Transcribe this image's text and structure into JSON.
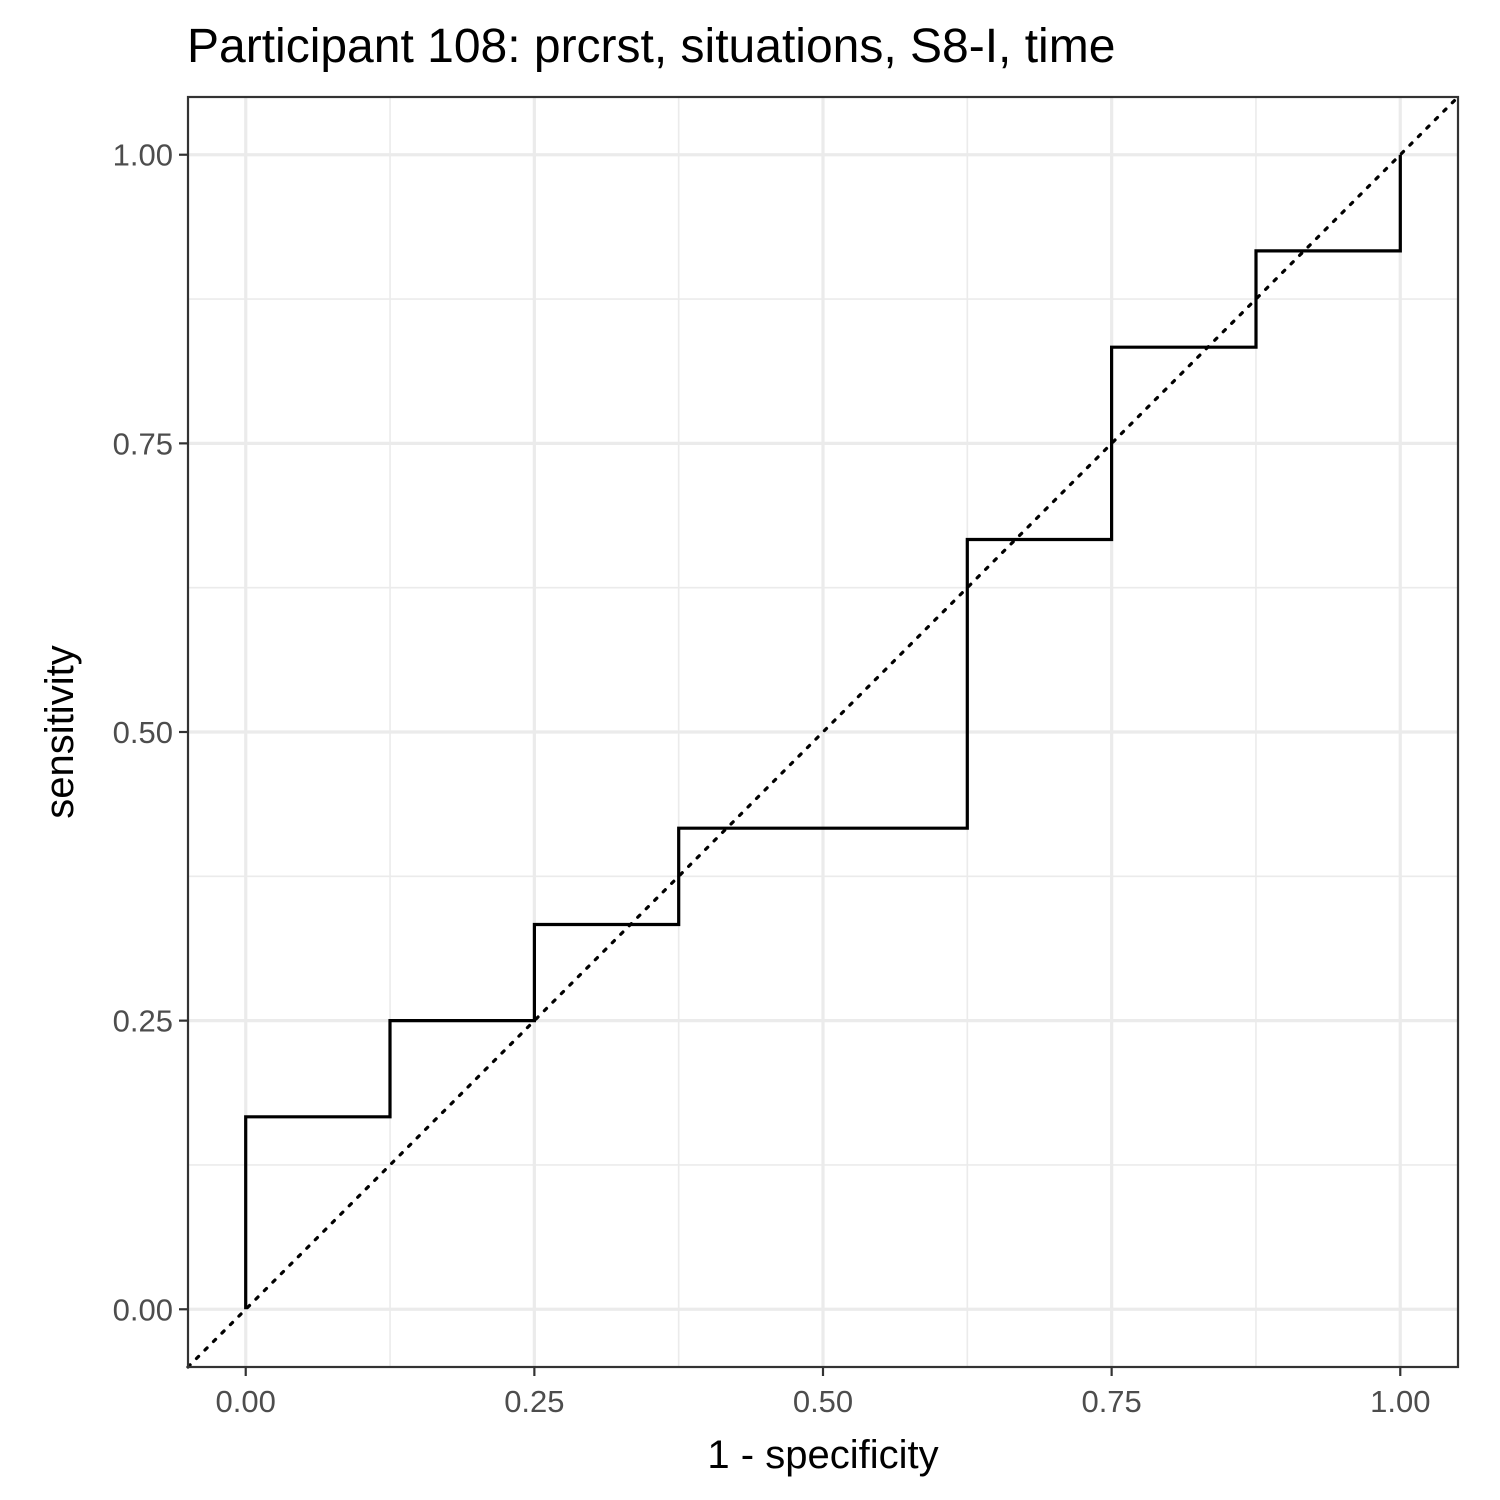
{
  "chart_data": {
    "type": "line",
    "title": "Participant 108: prcrst, situations, S8-I, time",
    "xlabel": "1 - specificity",
    "ylabel": "sensitivity",
    "xlim": [
      -0.05,
      1.05
    ],
    "ylim": [
      -0.05,
      1.05
    ],
    "x_ticks": [
      0,
      0.25,
      0.5,
      0.75,
      1
    ],
    "x_tick_labels": [
      "0.00",
      "0.25",
      "0.50",
      "0.75",
      "1.00"
    ],
    "y_ticks": [
      0,
      0.25,
      0.5,
      0.75,
      1
    ],
    "y_tick_labels": [
      "0.00",
      "0.25",
      "0.50",
      "0.75",
      "1.00"
    ],
    "grid": true,
    "series": [
      {
        "style": "step",
        "color": "#000000",
        "x": [
          0,
          0,
          0.125,
          0.125,
          0.25,
          0.25,
          0.375,
          0.375,
          0.625,
          0.625,
          0.75,
          0.75,
          0.875,
          0.875,
          1,
          1
        ],
        "y": [
          0,
          0.1667,
          0.1667,
          0.25,
          0.25,
          0.3333,
          0.3333,
          0.4167,
          0.4167,
          0.6667,
          0.6667,
          0.8333,
          0.8333,
          0.9167,
          0.9167,
          1
        ]
      }
    ],
    "reference_line": {
      "style": "dotted",
      "color": "#000000",
      "x": [
        -0.05,
        1.05
      ],
      "y": [
        -0.05,
        1.05
      ]
    }
  }
}
